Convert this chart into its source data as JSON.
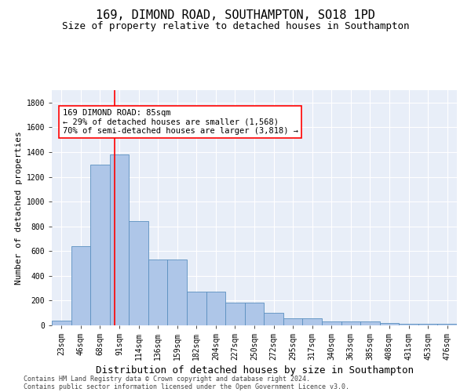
{
  "title1": "169, DIMOND ROAD, SOUTHAMPTON, SO18 1PD",
  "title2": "Size of property relative to detached houses in Southampton",
  "xlabel": "Distribution of detached houses by size in Southampton",
  "ylabel": "Number of detached properties",
  "categories": [
    "23sqm",
    "46sqm",
    "68sqm",
    "91sqm",
    "114sqm",
    "136sqm",
    "159sqm",
    "182sqm",
    "204sqm",
    "227sqm",
    "250sqm",
    "272sqm",
    "295sqm",
    "317sqm",
    "340sqm",
    "363sqm",
    "385sqm",
    "408sqm",
    "431sqm",
    "453sqm",
    "476sqm"
  ],
  "values": [
    40,
    640,
    1300,
    1380,
    840,
    530,
    530,
    270,
    270,
    185,
    185,
    100,
    60,
    60,
    30,
    30,
    30,
    20,
    15,
    10,
    10
  ],
  "bar_color": "#aec6e8",
  "bar_edge_color": "#5a8fc0",
  "ann_line1": "169 DIMOND ROAD: 85sqm",
  "ann_line2": "← 29% of detached houses are smaller (1,568)",
  "ann_line3": "70% of semi-detached houses are larger (3,818) →",
  "ylim": [
    0,
    1900
  ],
  "yticks": [
    0,
    200,
    400,
    600,
    800,
    1000,
    1200,
    1400,
    1600,
    1800
  ],
  "footer1": "Contains HM Land Registry data © Crown copyright and database right 2024.",
  "footer2": "Contains public sector information licensed under the Open Government Licence v3.0.",
  "bg_color": "#ffffff",
  "plot_bg_color": "#e8eef8",
  "grid_color": "#ffffff",
  "title1_fontsize": 11,
  "title2_fontsize": 9,
  "tick_fontsize": 7,
  "ylabel_fontsize": 8,
  "xlabel_fontsize": 9,
  "ann_fontsize": 7.5,
  "footer_fontsize": 6
}
